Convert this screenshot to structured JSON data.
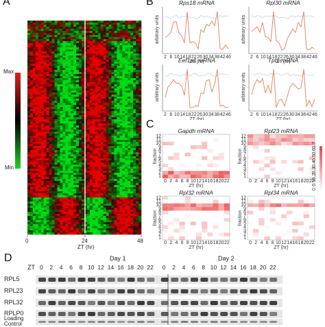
{
  "panels": {
    "a": "A",
    "b": "B",
    "c": "C",
    "d": "D"
  },
  "heatmap": {
    "legend_max": "Max",
    "legend_min": "Min",
    "x_ticks": [
      "0",
      "24",
      "48"
    ],
    "x_label": "ZT (hr)",
    "colors": {
      "high": "#e0201a",
      "low": "#22d02a",
      "mid": "#000000"
    }
  },
  "line_plots": {
    "ylabel": "arbitrary units",
    "xlabel": "ZT (hr)",
    "x_ticks": [
      "2",
      "6",
      "10",
      "14",
      "18",
      "22",
      "26",
      "30",
      "34",
      "38",
      "42",
      "46"
    ],
    "titles": [
      "Rps18 mRNA",
      "Rpl30 mRNA",
      "Eef1a1 mRNA",
      "Tpt1 mRNA"
    ],
    "colors": {
      "measured": "#e08a6a",
      "reference": "#8fb7d6"
    }
  },
  "fraction_maps": {
    "ylabel": "fraction",
    "xlabel": "ZT (hr)",
    "x_ticks": [
      "0",
      "2",
      "4",
      "6",
      "8",
      "10",
      "12",
      "14",
      "16",
      "18",
      "20",
      "22"
    ],
    "y_ticks": [
      "12",
      "11",
      "10",
      "9",
      "8",
      "7",
      "6",
      "5",
      "4",
      "3",
      "2",
      "1"
    ],
    "titles": [
      "Gapdh mRNA",
      "Rpl23 mRNA",
      "Rpl32 mRNA",
      "Rpl34 mRNA"
    ],
    "colorbar_ticks": [
      "0",
      "0.1",
      "0.2",
      "0.3",
      "0.4",
      "0.5",
      "0.6",
      "0.7"
    ],
    "color": "#e84848"
  },
  "blot": {
    "zt_label": "ZT",
    "day1": "Day 1",
    "day2": "Day 2",
    "zt_values": [
      "0",
      "2",
      "4",
      "6",
      "8",
      "10",
      "12",
      "14",
      "16",
      "18",
      "20",
      "22",
      "0",
      "2",
      "4",
      "6",
      "8",
      "10",
      "12",
      "14",
      "16",
      "18",
      "20",
      "22"
    ],
    "rows": [
      "RPL5",
      "RPL23",
      "RPL32",
      "RPLP0",
      "Loading Control"
    ]
  }
}
